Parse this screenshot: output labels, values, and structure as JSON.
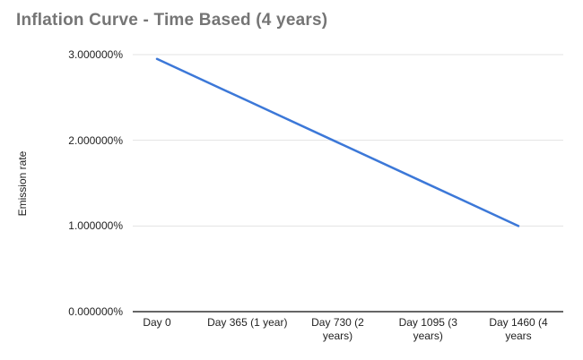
{
  "chart_data": {
    "type": "line",
    "title": "Inflation Curve - Time Based (4 years)",
    "xlabel": "",
    "ylabel": "Emission rate",
    "categories": [
      "Day 0",
      "Day 365 (1 year)",
      "Day 730 (2\nyears)",
      "Day 1095 (3\nyears)",
      "Day 1460 (4\nyears"
    ],
    "series": [
      {
        "name": "Emission rate",
        "color": "#3c78d8",
        "values": [
          2.95,
          2.4625,
          1.975,
          1.4875,
          1.0
        ]
      }
    ],
    "ylim": [
      0,
      3
    ],
    "y_tick_values": [
      0,
      1,
      2,
      3
    ],
    "y_tick_labels": [
      "0.000000%",
      "1.000000%",
      "2.000000%",
      "3.000000%"
    ],
    "grid": true,
    "legend_position": "none",
    "colors": {
      "title_text": "#757575",
      "tick_text": "#222222",
      "gridline": "#e3e3e3",
      "axis": "#333333",
      "background": "#ffffff"
    }
  }
}
